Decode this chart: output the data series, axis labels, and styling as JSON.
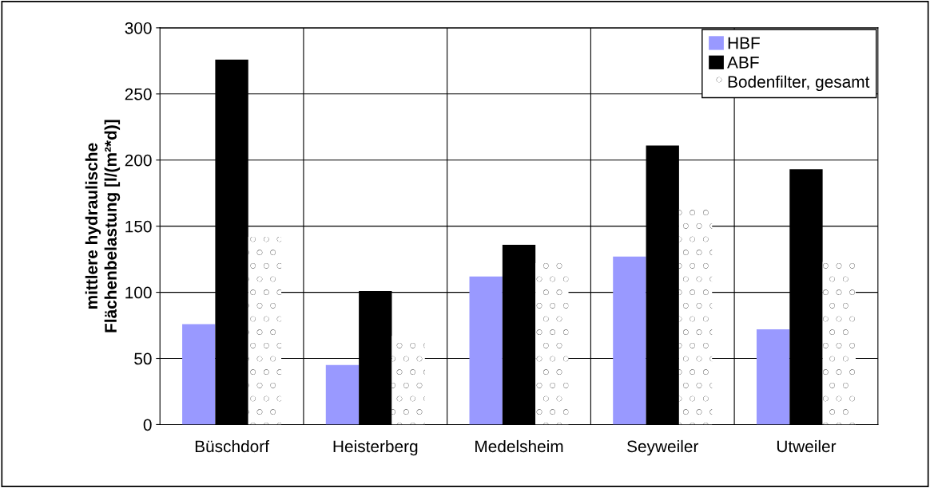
{
  "chart_data": {
    "type": "bar",
    "ylabel": "mittlere hydraulische\nFlächenbelastung [l/(m²*d)]",
    "categories": [
      "Büschdorf",
      "Heisterberg",
      "Medelsheim",
      "Seyweiler",
      "Utweiler"
    ],
    "series": [
      {
        "name": "HBF",
        "color": "#9999ff",
        "values": [
          76,
          45,
          112,
          127,
          72
        ]
      },
      {
        "name": "ABF",
        "color": "#000000",
        "values": [
          276,
          101,
          136,
          211,
          193
        ]
      },
      {
        "name": "Bodenfilter, gesamt",
        "color": "#ffffff",
        "values": [
          142,
          67,
          122,
          163,
          123
        ]
      }
    ],
    "ylim": [
      0,
      300
    ],
    "yticks": [
      0,
      50,
      100,
      150,
      200,
      250,
      300
    ],
    "grid": true,
    "legend": "top right"
  }
}
